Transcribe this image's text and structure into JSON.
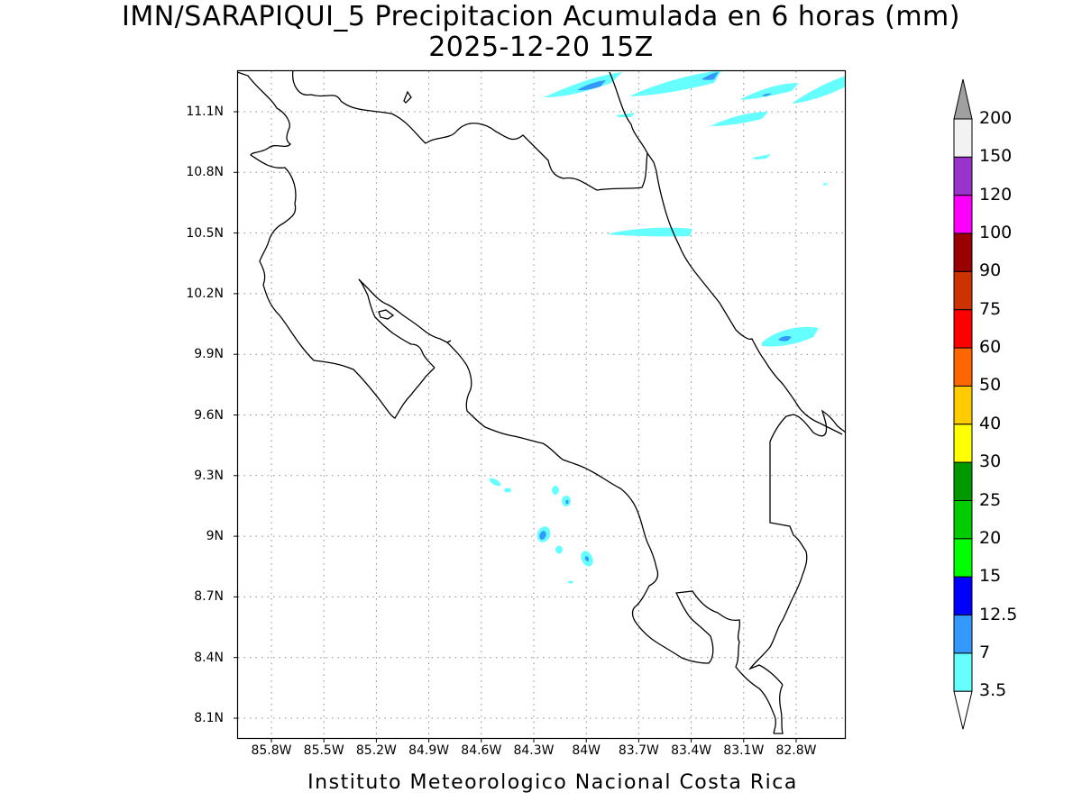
{
  "title": {
    "line1": "IMN/SARAPIQUI_5 Precipitacion Acumulada en 6 horas (mm)",
    "line2": "2025-12-20 15Z"
  },
  "map": {
    "lon_range": [
      -86.1,
      -82.5
    ],
    "lat_range": [
      8.0,
      11.3
    ],
    "lat_ticks": [
      "11.1N",
      "10.8N",
      "10.5N",
      "10.2N",
      "9.9N",
      "9.6N",
      "9.3N",
      "9N",
      "8.7N",
      "8.4N",
      "8.1N"
    ],
    "lon_ticks": [
      "85.8W",
      "85.5W",
      "85.2W",
      "84.9W",
      "84.6W",
      "84.3W",
      "84W",
      "83.7W",
      "83.4W",
      "83.1W",
      "82.8W"
    ],
    "grid": "dotted",
    "coastline_color": "#000000",
    "precip_areas": [
      {
        "name": "caribbean-north-1",
        "level": "3.5-7",
        "has_core": true
      },
      {
        "name": "caribbean-north-2",
        "level": "3.5-7",
        "has_core": true
      },
      {
        "name": "caribbean-north-3",
        "level": "3.5-7",
        "has_core": true
      },
      {
        "name": "caribbean-north-4",
        "level": "3.5-7",
        "has_core": false
      },
      {
        "name": "nicaragua-band",
        "level": "3.5-7",
        "has_core": false
      },
      {
        "name": "limon-coast",
        "level": "3.5-7",
        "has_core": true
      },
      {
        "name": "pacific-cells",
        "level": "3.5-7",
        "has_core": true
      }
    ]
  },
  "colorbar": {
    "labels": [
      "200",
      "150",
      "120",
      "100",
      "90",
      "75",
      "60",
      "50",
      "40",
      "30",
      "25",
      "20",
      "15",
      "12.5",
      "7",
      "3.5"
    ],
    "colors": [
      "#f2f2f2",
      "#9933cc",
      "#ff00ff",
      "#990000",
      "#cc3300",
      "#ff0000",
      "#ff6600",
      "#ffcc00",
      "#ffff00",
      "#009900",
      "#00cc00",
      "#00ff00",
      "#0000ff",
      "#3399ff",
      "#66ffff"
    ],
    "over_color": "#a0a0a0",
    "under_color": "#ffffff"
  },
  "footer": "Instituto Meteorologico Nacional Costa Rica"
}
